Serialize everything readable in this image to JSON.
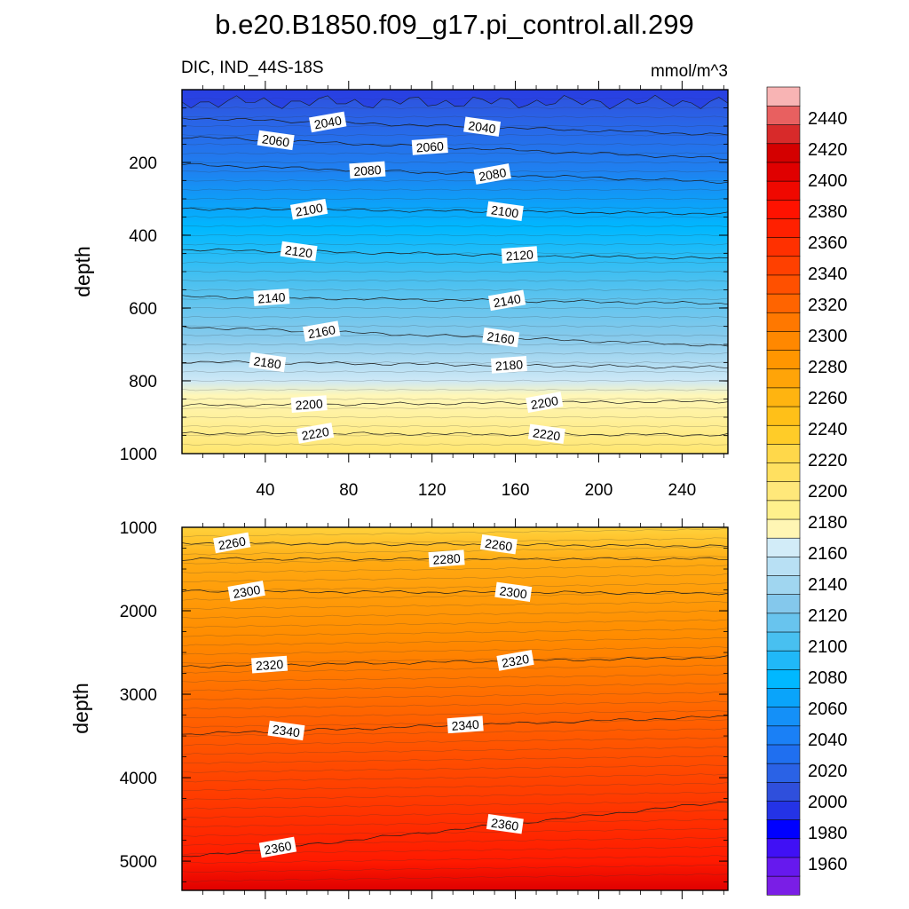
{
  "title": "b.e20.B1850.f09_g17.pi_control.all.299",
  "subtitle_left": "DIC, IND_44S-18S",
  "subtitle_right": "mmol/m^3",
  "colorbar": {
    "levels": [
      1960,
      1980,
      2000,
      2020,
      2040,
      2060,
      2080,
      2100,
      2120,
      2140,
      2160,
      2180,
      2200,
      2220,
      2240,
      2260,
      2280,
      2300,
      2320,
      2340,
      2360,
      2380,
      2400,
      2420,
      2440
    ],
    "tick_labels": [
      "1960",
      "1980",
      "2000",
      "2020",
      "2040",
      "2060",
      "2080",
      "2100",
      "2120",
      "2140",
      "2160",
      "2180",
      "2200",
      "2220",
      "2240",
      "2260",
      "2280",
      "2300",
      "2320",
      "2340",
      "2360",
      "2380",
      "2400",
      "2420",
      "2440"
    ],
    "boxes": [
      "#7a1ee6",
      "#6619ee",
      "#4010f5",
      "#0000ff",
      "#2433e6",
      "#2f4fdc",
      "#2a62e6",
      "#1f6ff0",
      "#1a80f6",
      "#1490f8",
      "#0aa4fa",
      "#00b8ff",
      "#20b8f8",
      "#48c0f0",
      "#68c4ee",
      "#84c8ec",
      "#a0d6f0",
      "#b8e0f4",
      "#d2ecf8",
      "#fff6b4",
      "#fff08c",
      "#ffe87a",
      "#ffe060",
      "#ffd84a",
      "#ffcc28",
      "#ffc018",
      "#ffb410",
      "#ffa408",
      "#ff9600",
      "#ff8800",
      "#ff7800",
      "#ff6400",
      "#ff5000",
      "#ff4000",
      "#ff3000",
      "#ff2000",
      "#ff1200",
      "#f00800",
      "#e00000",
      "#d40000",
      "#d82a2a",
      "#e86060",
      "#f8b4b4"
    ]
  },
  "chart_data": [
    {
      "type": "contour",
      "name": "upper",
      "xlabel": "",
      "ylabel": "depth",
      "xlim": [
        0,
        262
      ],
      "ylim": [
        1000,
        0
      ],
      "xticks": [
        40,
        80,
        120,
        160,
        200,
        240
      ],
      "xtick_labels": [
        "40",
        "80",
        "120",
        "160",
        "200",
        "240"
      ],
      "yticks": [
        200,
        400,
        600,
        800,
        1000
      ],
      "ytick_labels": [
        "200",
        "400",
        "600",
        "800",
        "1000"
      ],
      "contour_levels": [
        2040,
        2060,
        2080,
        2100,
        2120,
        2140,
        2160,
        2180,
        2200,
        2220
      ],
      "contour_labels": [
        {
          "text": "2040",
          "x": 70,
          "y": 90
        },
        {
          "text": "2060",
          "x": 45,
          "y": 140
        },
        {
          "text": "2080",
          "x": 89,
          "y": 222
        },
        {
          "text": "2100",
          "x": 61,
          "y": 330
        },
        {
          "text": "2120",
          "x": 56,
          "y": 445
        },
        {
          "text": "2140",
          "x": 43,
          "y": 572
        },
        {
          "text": "2160",
          "x": 67,
          "y": 665
        },
        {
          "text": "2180",
          "x": 41,
          "y": 750
        },
        {
          "text": "2200",
          "x": 61,
          "y": 865
        },
        {
          "text": "2220",
          "x": 64,
          "y": 945
        },
        {
          "text": "2040",
          "x": 144,
          "y": 103
        },
        {
          "text": "2060",
          "x": 119,
          "y": 157
        },
        {
          "text": "2080",
          "x": 149,
          "y": 233
        },
        {
          "text": "2100",
          "x": 155,
          "y": 335
        },
        {
          "text": "2120",
          "x": 162,
          "y": 455
        },
        {
          "text": "2140",
          "x": 156,
          "y": 580
        },
        {
          "text": "2160",
          "x": 153,
          "y": 682
        },
        {
          "text": "2180",
          "x": 157,
          "y": 757
        },
        {
          "text": "2200",
          "x": 174,
          "y": 860
        },
        {
          "text": "2220",
          "x": 175,
          "y": 947
        }
      ]
    },
    {
      "type": "contour",
      "name": "lower",
      "xlabel": "",
      "ylabel": "depth",
      "xlim": [
        0,
        262
      ],
      "ylim": [
        5350,
        1000
      ],
      "xticks": [
        40,
        80,
        120,
        160,
        200,
        240
      ],
      "xtick_labels": [],
      "yticks": [
        1000,
        2000,
        3000,
        4000,
        5000
      ],
      "ytick_labels": [
        "1000",
        "2000",
        "3000",
        "4000",
        "5000"
      ],
      "contour_levels": [
        2260,
        2280,
        2300,
        2320,
        2340,
        2360
      ],
      "contour_labels": [
        {
          "text": "2260",
          "x": 24,
          "y": 1190
        },
        {
          "text": "2260",
          "x": 152,
          "y": 1210
        },
        {
          "text": "2280",
          "x": 127,
          "y": 1380
        },
        {
          "text": "2300",
          "x": 31,
          "y": 1770
        },
        {
          "text": "2300",
          "x": 159,
          "y": 1780
        },
        {
          "text": "2320",
          "x": 42,
          "y": 2650
        },
        {
          "text": "2320",
          "x": 160,
          "y": 2600
        },
        {
          "text": "2340",
          "x": 50,
          "y": 3440
        },
        {
          "text": "2340",
          "x": 136,
          "y": 3370
        },
        {
          "text": "2360",
          "x": 46,
          "y": 4840
        },
        {
          "text": "2360",
          "x": 155,
          "y": 4560
        }
      ]
    }
  ]
}
